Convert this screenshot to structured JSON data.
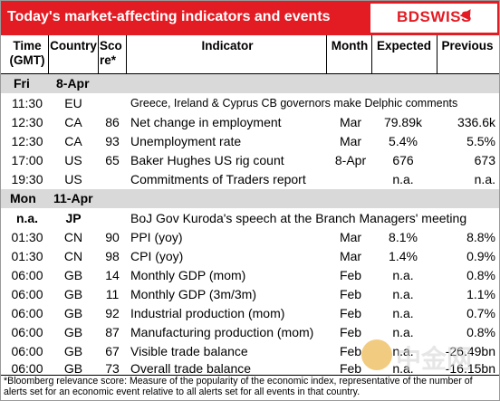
{
  "title": "Today's market-affecting indicators and events",
  "logo": {
    "text": "BDSWISS",
    "brand_color": "#e31b23"
  },
  "columns": {
    "time": [
      "Time",
      "(GMT)"
    ],
    "country": "Country",
    "score": [
      "Sco",
      "re*"
    ],
    "indicator": "Indicator",
    "month": "Month",
    "expected": "Expected",
    "previous": "Previous"
  },
  "sections": [
    {
      "day": "Fri",
      "date": "8-Apr"
    },
    {
      "day": "Mon",
      "date": "11-Apr"
    }
  ],
  "rows_fri": [
    {
      "time": "11:30",
      "country": "EU",
      "score": "",
      "indicator": "Greece, Ireland & Cyprus CB governors make Delphic comments",
      "month": "",
      "expected": "",
      "previous": ""
    },
    {
      "time": "12:30",
      "country": "CA",
      "score": "86",
      "indicator": "Net change in employment",
      "month": "Mar",
      "expected": "79.89k",
      "previous": "336.6k"
    },
    {
      "time": "12:30",
      "country": "CA",
      "score": "93",
      "indicator": "Unemployment rate",
      "month": "Mar",
      "expected": "5.4%",
      "previous": "5.5%"
    },
    {
      "time": "17:00",
      "country": "US",
      "score": "65",
      "indicator": "Baker Hughes US rig count",
      "month": "8-Apr",
      "expected": "676",
      "previous": "673"
    },
    {
      "time": "19:30",
      "country": "US",
      "score": "",
      "indicator": "Commitments of Traders  report",
      "month": "",
      "expected": "n.a.",
      "previous": "n.a."
    }
  ],
  "rows_mon": [
    {
      "time": "n.a.",
      "country": "JP",
      "score": "",
      "indicator": "BoJ Gov Kuroda's speech at the Branch Managers' meeting",
      "month": "",
      "expected": "",
      "previous": ""
    },
    {
      "time": "01:30",
      "country": "CN",
      "score": "90",
      "indicator": "PPI (yoy)",
      "month": "Mar",
      "expected": "8.1%",
      "previous": "8.8%"
    },
    {
      "time": "01:30",
      "country": "CN",
      "score": "98",
      "indicator": "CPI (yoy)",
      "month": "Mar",
      "expected": "1.4%",
      "previous": "0.9%"
    },
    {
      "time": "06:00",
      "country": "GB",
      "score": "14",
      "indicator": "Monthly GDP (mom)",
      "month": "Feb",
      "expected": "n.a.",
      "previous": "0.8%"
    },
    {
      "time": "06:00",
      "country": "GB",
      "score": "11",
      "indicator": "Monthly GDP (3m/3m)",
      "month": "Feb",
      "expected": "n.a.",
      "previous": "1.1%"
    },
    {
      "time": "06:00",
      "country": "GB",
      "score": "92",
      "indicator": "Industrial production (mom)",
      "month": "Feb",
      "expected": "n.a.",
      "previous": "0.7%"
    },
    {
      "time": "06:00",
      "country": "GB",
      "score": "87",
      "indicator": "Manufacturing production (mom)",
      "month": "Feb",
      "expected": "n.a.",
      "previous": "0.8%"
    },
    {
      "time": "06:00",
      "country": "GB",
      "score": "67",
      "indicator": "Visible trade balance",
      "month": "Feb",
      "expected": "n.a.",
      "previous": "-26.49bn"
    },
    {
      "time": "06:00",
      "country": "GB",
      "score": "73",
      "indicator": "Overall trade balance",
      "month": "Feb",
      "expected": "n.a.",
      "previous": "-16.15bn"
    }
  ],
  "footnote": "*Bloomberg relevance score:  Measure of the popularity of the economic index, representative of the number of alerts set for an economic event relative to all alerts set for all events in that country.",
  "watermark": {
    "text": "中金网"
  }
}
